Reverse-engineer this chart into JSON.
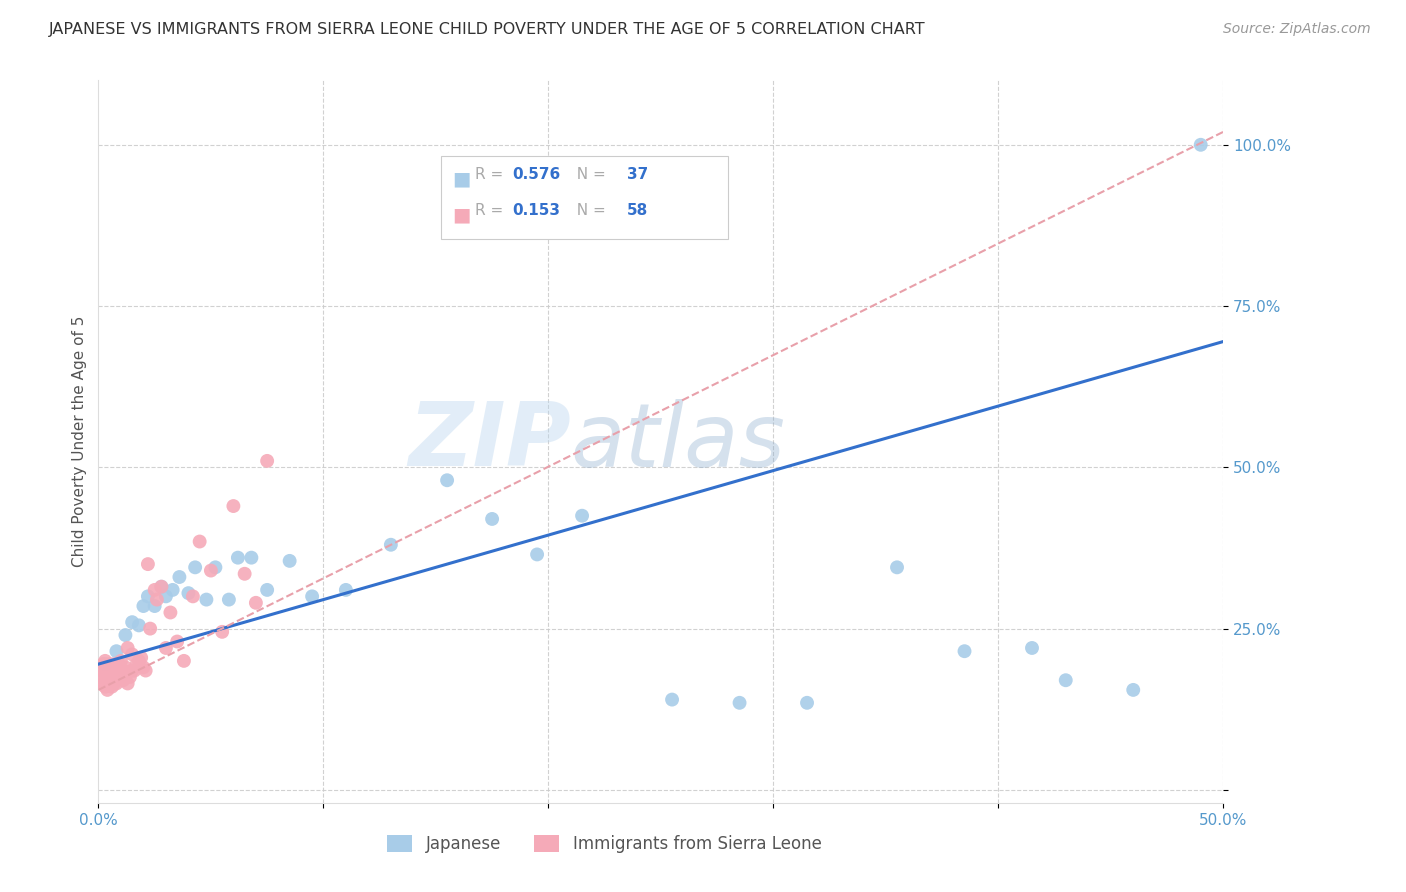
{
  "title": "JAPANESE VS IMMIGRANTS FROM SIERRA LEONE CHILD POVERTY UNDER THE AGE OF 5 CORRELATION CHART",
  "source": "Source: ZipAtlas.com",
  "ylabel": "Child Poverty Under the Age of 5",
  "watermark_zip": "ZIP",
  "watermark_atlas": "atlas",
  "legend_label1": "Japanese",
  "legend_label2": "Immigrants from Sierra Leone",
  "r1": "0.576",
  "n1": "37",
  "r2": "0.153",
  "n2": "58",
  "color1": "#a8cce8",
  "color2": "#f5aab8",
  "trend_color1": "#3370cc",
  "trend_color2": "#e8a0aa",
  "xlim": [
    0.0,
    0.5
  ],
  "ylim": [
    -0.02,
    1.1
  ],
  "yticks": [
    0.0,
    0.25,
    0.5,
    0.75,
    1.0
  ],
  "ytick_labels": [
    "",
    "25.0%",
    "50.0%",
    "75.0%",
    "100.0%"
  ],
  "xticks": [
    0.0,
    0.1,
    0.2,
    0.3,
    0.4,
    0.5
  ],
  "xtick_labels": [
    "0.0%",
    "",
    "",
    "",
    "",
    "50.0%"
  ],
  "japanese_x": [
    0.003,
    0.008,
    0.012,
    0.015,
    0.018,
    0.02,
    0.022,
    0.025,
    0.028,
    0.03,
    0.033,
    0.036,
    0.04,
    0.043,
    0.048,
    0.052,
    0.058,
    0.062,
    0.068,
    0.075,
    0.085,
    0.095,
    0.11,
    0.13,
    0.155,
    0.175,
    0.195,
    0.215,
    0.255,
    0.285,
    0.315,
    0.355,
    0.385,
    0.415,
    0.43,
    0.46,
    0.49
  ],
  "japanese_y": [
    0.195,
    0.215,
    0.24,
    0.26,
    0.255,
    0.285,
    0.3,
    0.285,
    0.315,
    0.3,
    0.31,
    0.33,
    0.305,
    0.345,
    0.295,
    0.345,
    0.295,
    0.36,
    0.36,
    0.31,
    0.355,
    0.3,
    0.31,
    0.38,
    0.48,
    0.42,
    0.365,
    0.425,
    0.14,
    0.135,
    0.135,
    0.345,
    0.215,
    0.22,
    0.17,
    0.155,
    1.0
  ],
  "sierra_leone_x": [
    0.001,
    0.001,
    0.002,
    0.002,
    0.003,
    0.003,
    0.003,
    0.004,
    0.004,
    0.004,
    0.005,
    0.005,
    0.005,
    0.006,
    0.006,
    0.006,
    0.007,
    0.007,
    0.007,
    0.008,
    0.008,
    0.008,
    0.009,
    0.009,
    0.01,
    0.01,
    0.011,
    0.011,
    0.012,
    0.012,
    0.013,
    0.013,
    0.014,
    0.015,
    0.015,
    0.016,
    0.017,
    0.018,
    0.019,
    0.02,
    0.021,
    0.022,
    0.023,
    0.025,
    0.026,
    0.028,
    0.03,
    0.032,
    0.035,
    0.038,
    0.042,
    0.045,
    0.05,
    0.055,
    0.06,
    0.065,
    0.07,
    0.075
  ],
  "sierra_leone_y": [
    0.185,
    0.175,
    0.195,
    0.165,
    0.18,
    0.16,
    0.2,
    0.17,
    0.185,
    0.155,
    0.175,
    0.165,
    0.195,
    0.16,
    0.175,
    0.185,
    0.165,
    0.195,
    0.175,
    0.18,
    0.165,
    0.185,
    0.195,
    0.175,
    0.185,
    0.2,
    0.17,
    0.185,
    0.175,
    0.19,
    0.165,
    0.22,
    0.175,
    0.185,
    0.21,
    0.185,
    0.195,
    0.2,
    0.205,
    0.19,
    0.185,
    0.35,
    0.25,
    0.31,
    0.295,
    0.315,
    0.22,
    0.275,
    0.23,
    0.2,
    0.3,
    0.385,
    0.34,
    0.245,
    0.44,
    0.335,
    0.29,
    0.51
  ],
  "trend1_x0": 0.0,
  "trend1_x1": 0.5,
  "trend1_y0": 0.195,
  "trend1_y1": 0.695,
  "trend2_x0": 0.0,
  "trend2_x1": 0.5,
  "trend2_y0": 0.155,
  "trend2_y1": 1.02
}
